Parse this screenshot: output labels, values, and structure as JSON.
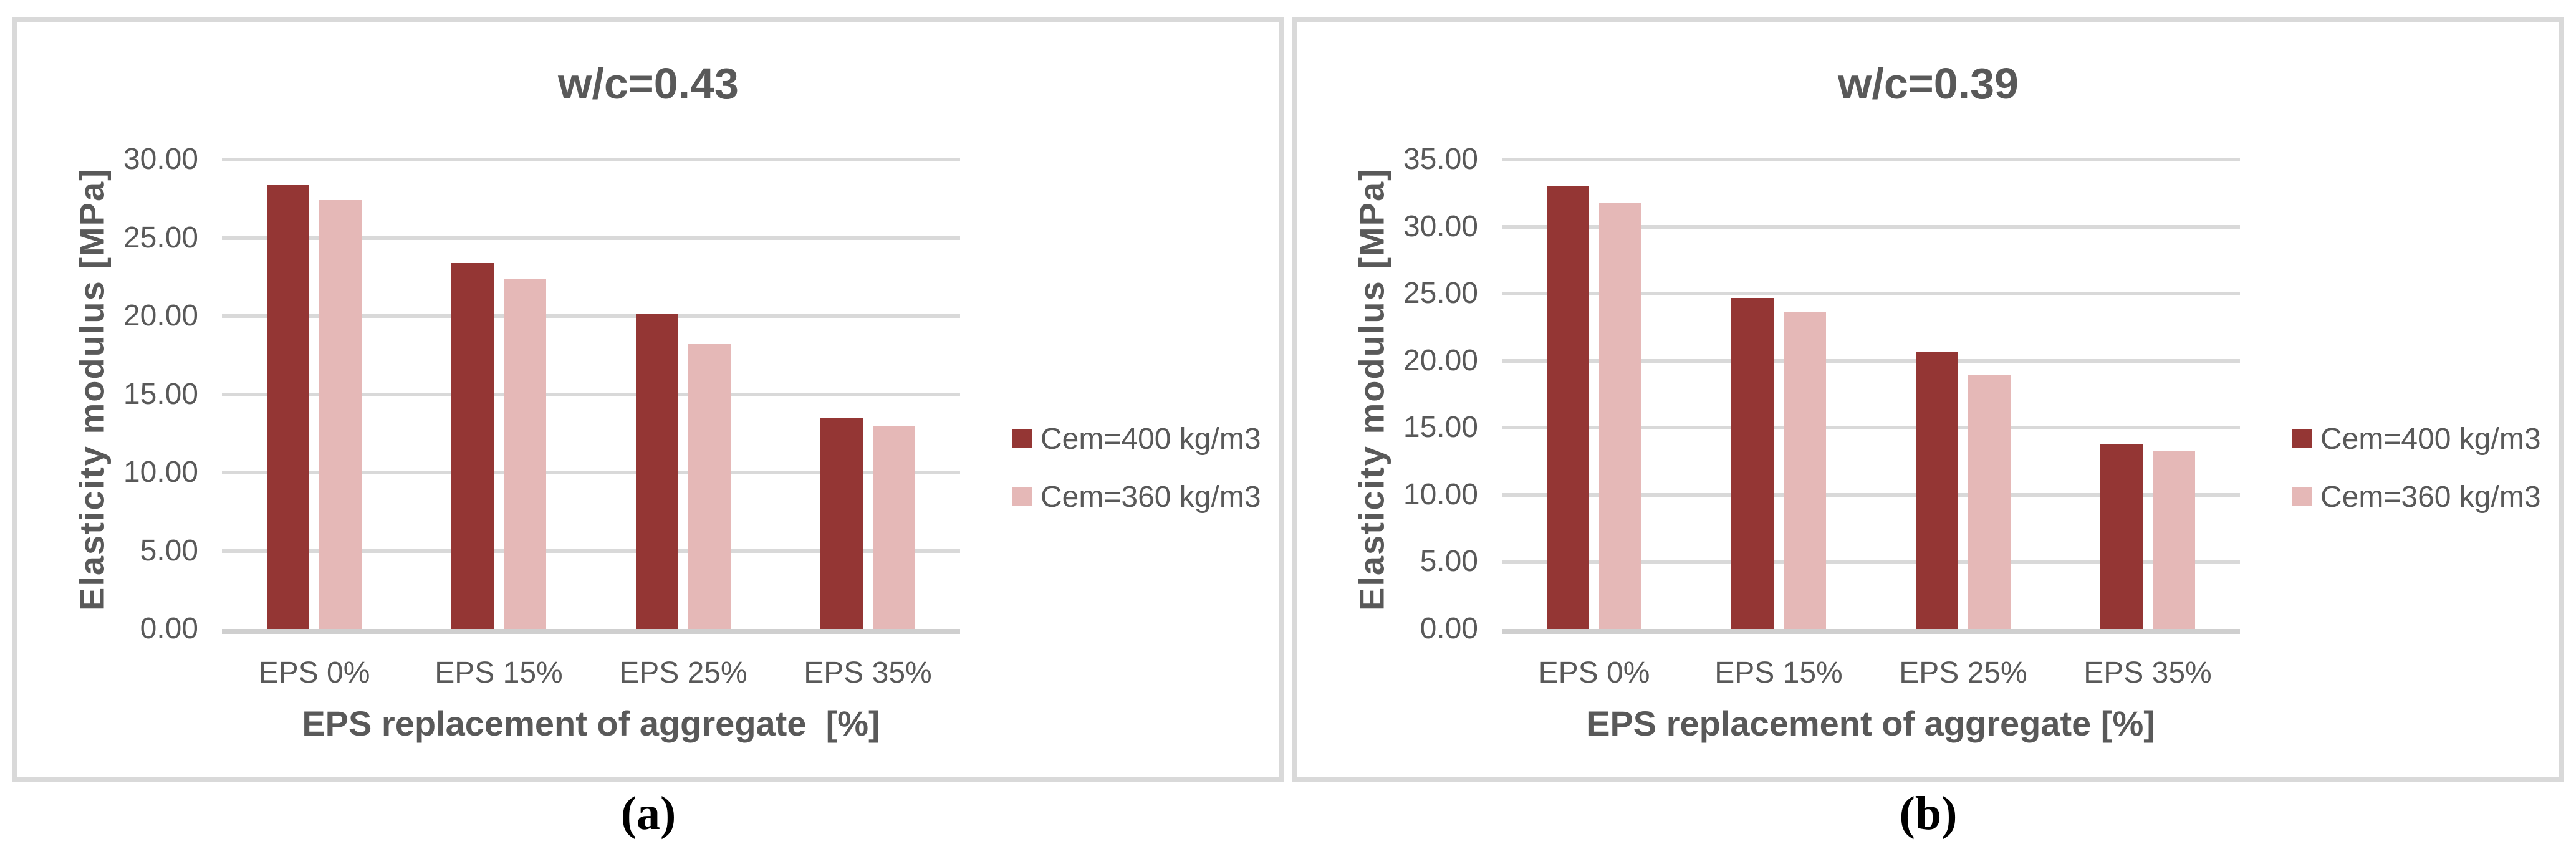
{
  "figure": {
    "captions": [
      "(a)",
      "(b)"
    ]
  },
  "colors": {
    "series_dark": "#943634",
    "series_pink": "#e5b8b7",
    "text": "#595959",
    "gridline": "#d9d9d9",
    "axis_line": "#cfcfcf",
    "panel_border": "#d9d9d9",
    "caption_text": "#000000"
  },
  "chart_data": [
    {
      "type": "bar",
      "title": "w/c=0.43",
      "ylabel": "Elasticity modulus [MPa]",
      "xlabel": "EPS replacement of aggregate  [%]",
      "categories": [
        "EPS 0%",
        "EPS 15%",
        "EPS 25%",
        "EPS 35%"
      ],
      "series": [
        {
          "name": "Cem=400 kg/m3",
          "color": "#943634",
          "values": [
            28.4,
            23.4,
            20.1,
            13.5
          ]
        },
        {
          "name": "Cem=360 kg/m3",
          "color": "#e5b8b7",
          "values": [
            27.4,
            22.4,
            18.2,
            13.0
          ]
        }
      ],
      "ylim": [
        0,
        30
      ],
      "ytick_step": 5,
      "ytick_labels": [
        "0.00",
        "5.00",
        "10.00",
        "15.00",
        "20.00",
        "25.00",
        "30.00"
      ],
      "grid": true,
      "legend_position": "right"
    },
    {
      "type": "bar",
      "title": "w/c=0.39",
      "ylabel": "Elasticity modulus [MPa]",
      "xlabel": "EPS replacement of aggregate [%]",
      "categories": [
        "EPS 0%",
        "EPS 15%",
        "EPS 25%",
        "EPS 35%"
      ],
      "series": [
        {
          "name": "Cem=400 kg/m3",
          "color": "#943634",
          "values": [
            33.0,
            24.7,
            20.7,
            13.8
          ]
        },
        {
          "name": "Cem=360 kg/m3",
          "color": "#e5b8b7",
          "values": [
            31.8,
            23.6,
            18.9,
            13.3
          ]
        }
      ],
      "ylim": [
        0,
        35
      ],
      "ytick_step": 5,
      "ytick_labels": [
        "0.00",
        "5.00",
        "10.00",
        "15.00",
        "20.00",
        "25.00",
        "30.00",
        "35.00"
      ],
      "grid": true,
      "legend_position": "right"
    }
  ]
}
